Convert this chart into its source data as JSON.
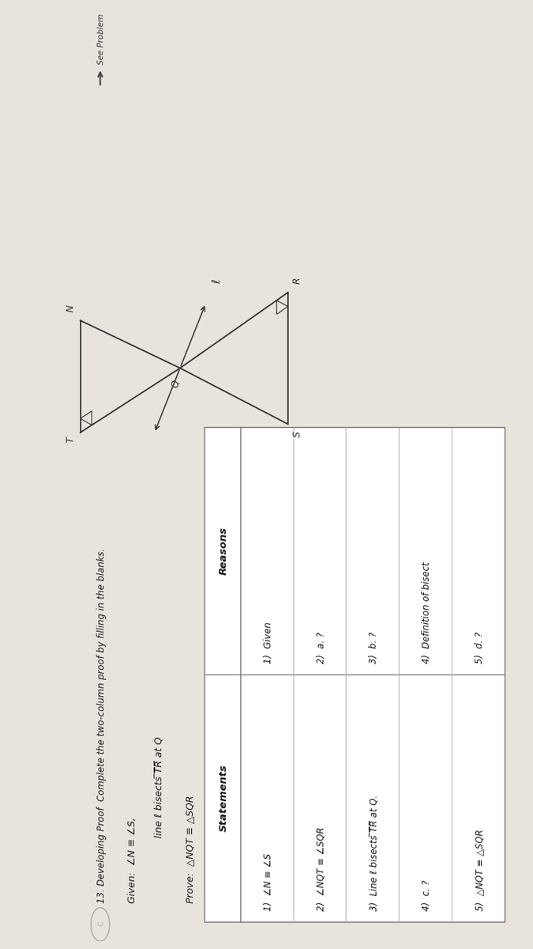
{
  "bg_color": "#ddd8ce",
  "page_color": "#e8e4dc",
  "title": "13. Developing Proof  Complete the two-column proof by filling in the blanks.",
  "given_line1": "Given:  ∠N ≡ ∠S,",
  "given_line2": "line ℓ bisects ̅T̅R̅ at Q",
  "prove_line": "Prove:  △NQT ≡ △SQR",
  "statements_header": "Statements",
  "reasons_header": "Reasons",
  "rows": [
    {
      "num": "1)",
      "statement": "∠N ≡ ∠S",
      "reason": "1)  Given"
    },
    {
      "num": "2)",
      "statement": "∠NQT ≡ ∠SQR",
      "reason": "2)  a. ?"
    },
    {
      "num": "3)",
      "statement": "Line ℓ bisects ̅T̅R̅ at Q.",
      "reason": "3)  b. ?"
    },
    {
      "num": "4)",
      "statement": "c. ?",
      "reason": "4)  Definition of bisect"
    },
    {
      "num": "5)",
      "statement": "△NQT ≡ △SQR",
      "reason": "5)  d. ?"
    }
  ],
  "col_line": "#888888",
  "text_color": "#1a1a1a",
  "see_problem_text": "◄ See Problem"
}
